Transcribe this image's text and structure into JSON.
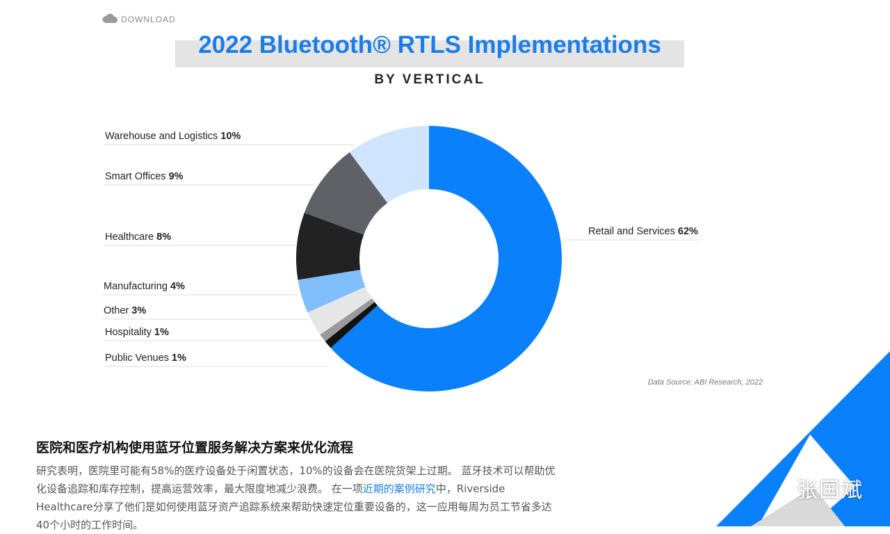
{
  "download": "DOWNLOAD",
  "chart_data": {
    "type": "donut",
    "title": "2022 Bluetooth® RTLS Implementations",
    "subtitle": "BY VERTICAL",
    "categories": [
      "Retail and Services",
      "Public Venues",
      "Hospitality",
      "Other",
      "Manufacturing",
      "Healthcare",
      "Smart Offices",
      "Warehouse and Logistics"
    ],
    "values": [
      62,
      1,
      1,
      3,
      4,
      8,
      9,
      10
    ],
    "value_labels": [
      "62%",
      "1%",
      "1%",
      "3%",
      "4%",
      "8%",
      "9%",
      "10%"
    ],
    "colors": [
      "#0a80fb",
      "#111111",
      "#9a9a9a",
      "#e6e6e6",
      "#80befd",
      "#222222",
      "#5f6166",
      "#cfe5fd"
    ],
    "source": "Data Source: ABI Research, 2022"
  },
  "article": {
    "heading": "医院和医疗机构使用蓝牙位置服务解决方案来优化流程",
    "text_before": "研究表明，医院里可能有58%的医疗设备处于闲置状态，10%的设备会在医院货架上过期。 蓝牙技术可以帮助优化设备追踪和库存控制，提高运营效率，最大限度地减少浪费。 在一项",
    "link": "近期的案例研究",
    "text_after": "中，Riverside Healthcare分享了他们是如何使用蓝牙资产追踪系统来帮助快速定位重要设备的，这一应用每周为员工节省多达40个小时的工作时间。"
  },
  "watermark": "张国斌"
}
